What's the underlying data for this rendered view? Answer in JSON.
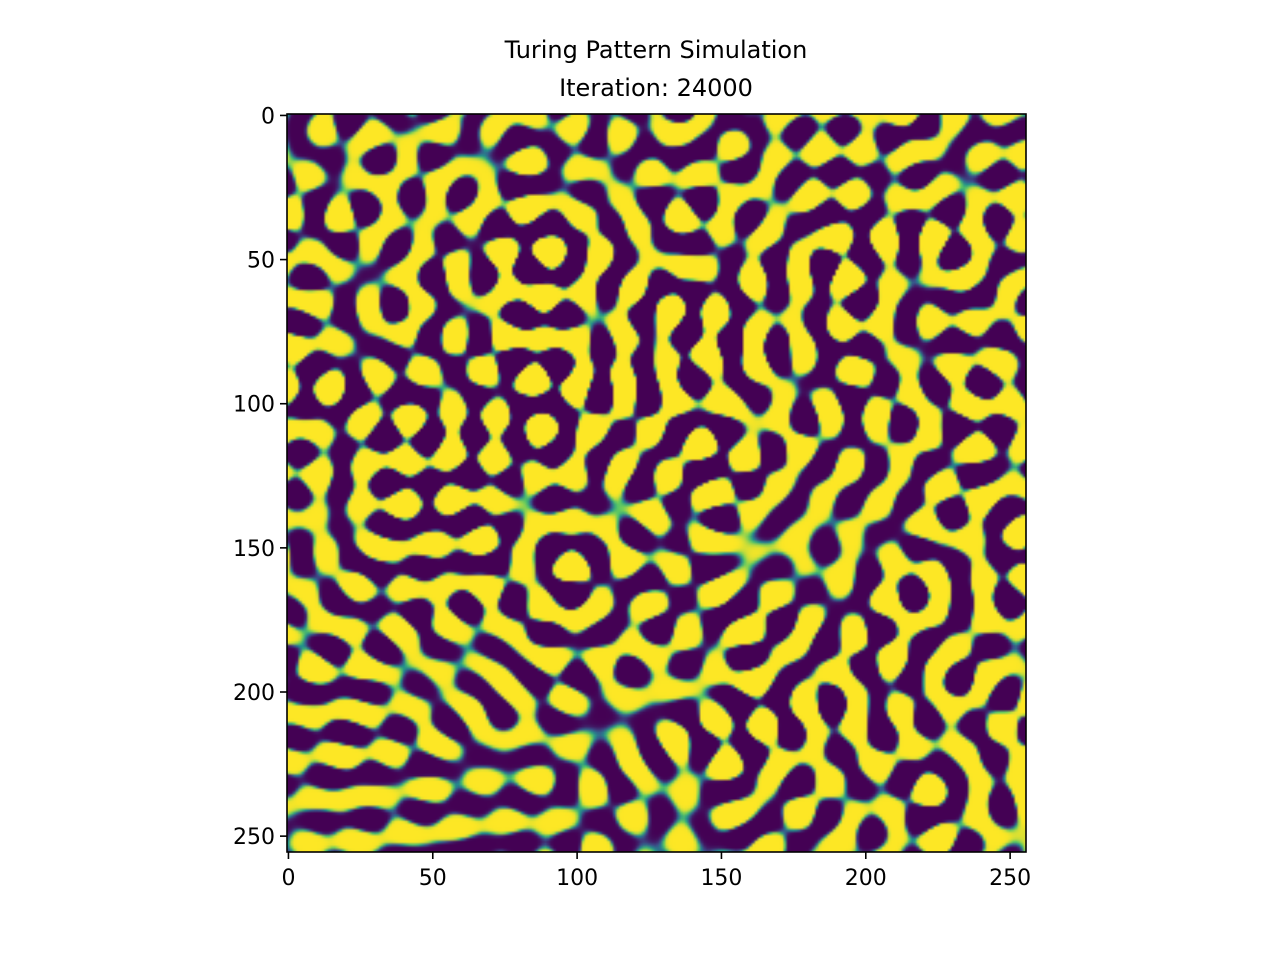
{
  "chart_data": {
    "type": "heatmap",
    "title": "Turing Pattern Simulation",
    "subtitle": "Iteration: 24000",
    "xlabel": "",
    "ylabel": "",
    "xlim": [
      0,
      255
    ],
    "ylim": [
      255,
      0
    ],
    "grid": false,
    "colormap": "viridis",
    "grid_size": [
      256,
      256
    ],
    "x_ticks": [
      0,
      50,
      100,
      150,
      200,
      250
    ],
    "y_ticks": [
      0,
      50,
      100,
      150,
      200,
      250
    ],
    "x_tick_labels": [
      "0",
      "50",
      "100",
      "150",
      "200",
      "250"
    ],
    "y_tick_labels": [
      "0",
      "50",
      "100",
      "150",
      "200",
      "250"
    ],
    "iteration": 24000,
    "pattern": "labyrinthine stripes"
  },
  "colors": {
    "low": "#440154",
    "mid": "#21918c",
    "high": "#fde725",
    "background": "#ffffff"
  }
}
